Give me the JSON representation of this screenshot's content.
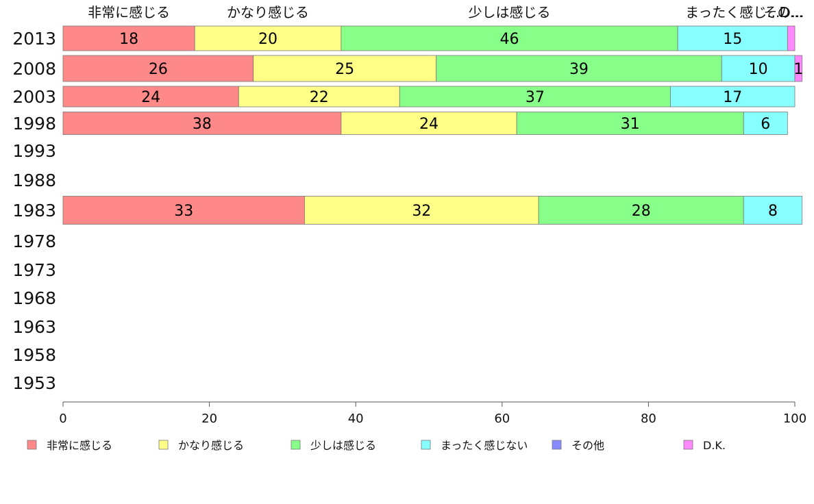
{
  "chart_data": {
    "type": "bar",
    "orientation": "horizontal",
    "stacked": true,
    "categories": [
      "2013",
      "2008",
      "2003",
      "1998",
      "1993",
      "1988",
      "1983",
      "1978",
      "1973",
      "1968",
      "1963",
      "1958",
      "1953"
    ],
    "series": [
      {
        "name": "非常に感じる",
        "color": "#ff8888",
        "values": [
          18,
          26,
          24,
          38,
          null,
          null,
          33,
          null,
          null,
          null,
          null,
          null,
          null
        ]
      },
      {
        "name": "かなり感じる",
        "color": "#ffff88",
        "values": [
          20,
          25,
          22,
          24,
          null,
          null,
          32,
          null,
          null,
          null,
          null,
          null,
          null
        ]
      },
      {
        "name": "少しは感じる",
        "color": "#88ff88",
        "values": [
          46,
          39,
          37,
          31,
          null,
          null,
          28,
          null,
          null,
          null,
          null,
          null,
          null
        ]
      },
      {
        "name": "まったく感じない",
        "color": "#88ffff",
        "values": [
          15,
          10,
          17,
          6,
          null,
          null,
          8,
          null,
          null,
          null,
          null,
          null,
          null
        ]
      },
      {
        "name": "その他",
        "color": "#8888ff",
        "values": [
          0,
          0,
          0,
          0,
          null,
          null,
          0,
          null,
          null,
          null,
          null,
          null,
          null
        ]
      },
      {
        "name": "D.K.",
        "color": "#ff88ff",
        "values": [
          1,
          1,
          0,
          0,
          null,
          null,
          0,
          null,
          null,
          null,
          null,
          null,
          null
        ]
      }
    ],
    "data_labels": [
      [
        "18",
        "20",
        "46",
        "15",
        "",
        ""
      ],
      [
        "26",
        "25",
        "39",
        "10",
        "",
        "1"
      ],
      [
        "24",
        "22",
        "37",
        "17",
        "",
        ""
      ],
      [
        "38",
        "24",
        "31",
        "6",
        "",
        ""
      ],
      [
        "",
        "",
        "",
        "",
        "",
        ""
      ],
      [
        "",
        "",
        "",
        "",
        "",
        ""
      ],
      [
        "33",
        "32",
        "28",
        "8",
        "",
        ""
      ],
      [
        "",
        "",
        "",
        "",
        "",
        ""
      ],
      [
        "",
        "",
        "",
        "",
        "",
        ""
      ],
      [
        "",
        "",
        "",
        "",
        "",
        ""
      ],
      [
        "",
        "",
        "",
        "",
        "",
        ""
      ],
      [
        "",
        "",
        "",
        "",
        "",
        ""
      ],
      [
        "",
        "",
        "",
        "",
        "",
        ""
      ]
    ],
    "top_labels": [
      "非常に感じる",
      "かなり感じる",
      "少しは感じる",
      "まったく感じ...",
      "その...",
      "D..."
    ],
    "xlim": [
      0,
      100
    ],
    "xticks": [
      0,
      20,
      40,
      60,
      80,
      100
    ],
    "legend": "bottom",
    "grid": false
  }
}
